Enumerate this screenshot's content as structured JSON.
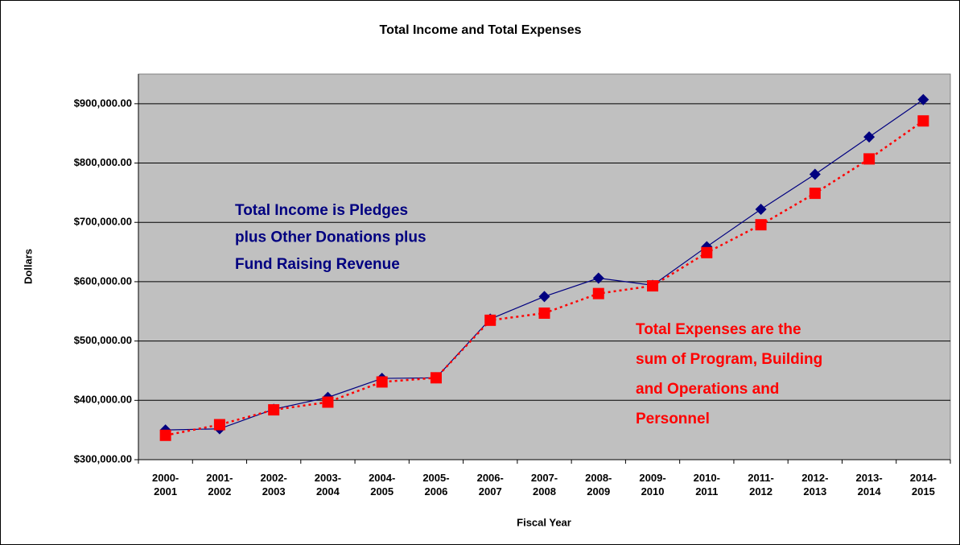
{
  "chart_data": {
    "type": "line",
    "title": "Total Income and Total Expenses",
    "xlabel": "Fiscal Year",
    "ylabel": "Dollars",
    "categories": [
      "2000-2001",
      "2001-2002",
      "2002-2003",
      "2003-2004",
      "2004-2005",
      "2005-2006",
      "2006-2007",
      "2007-2008",
      "2008-2009",
      "2009-2010",
      "2010-2011",
      "2011-2012",
      "2012-2013",
      "2013-2014",
      "2014-2015"
    ],
    "series": [
      {
        "name": "Total Income",
        "color": "#000080",
        "marker": "diamond",
        "dash": false,
        "values": [
          350000,
          352000,
          385000,
          405000,
          437000,
          438000,
          537000,
          575000,
          606000,
          594000,
          659000,
          722000,
          781000,
          844000,
          907000
        ]
      },
      {
        "name": "Total Expenses",
        "color": "#ff0000",
        "marker": "square",
        "dash": true,
        "values": [
          341000,
          359000,
          384000,
          397000,
          431000,
          438000,
          535000,
          547000,
          580000,
          593000,
          649000,
          696000,
          749000,
          807000,
          871000
        ]
      }
    ],
    "ylim": [
      300000,
      950000
    ],
    "yticks": [
      {
        "value": 300000,
        "label": "$300,000.00"
      },
      {
        "value": 400000,
        "label": "$400,000.00"
      },
      {
        "value": 500000,
        "label": "$500,000.00"
      },
      {
        "value": 600000,
        "label": "$600,000.00"
      },
      {
        "value": 700000,
        "label": "$700,000.00"
      },
      {
        "value": 800000,
        "label": "$800,000.00"
      },
      {
        "value": 900000,
        "label": "$900,000.00"
      }
    ],
    "grid": true,
    "annotations": [
      {
        "color": "#000080",
        "lines": [
          "Total Income is Pledges",
          "plus Other Donations plus",
          "Fund Raising Revenue"
        ]
      },
      {
        "color": "#ff0000",
        "lines": [
          "Total Expenses are the",
          "sum of Program, Building",
          "and Operations and",
          "Personnel"
        ]
      }
    ]
  }
}
